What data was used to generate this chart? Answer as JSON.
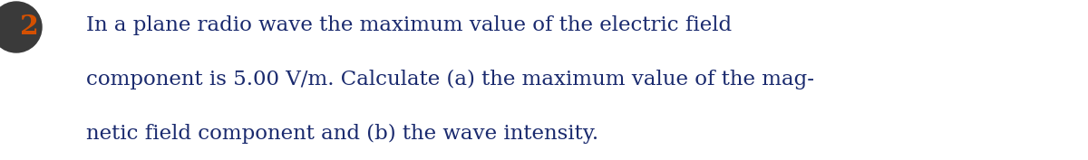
{
  "background_color": "#ffffff",
  "number_text": "2",
  "number_color": "#d45000",
  "icon_bg_color": "#3a3a3a",
  "line1": "In a plane radio wave the maximum value of the electric field",
  "line2": "component is 5.00 V/m. Calculate (a) the maximum value of the mag-",
  "line3": "netic field component and (b) the wave intensity.",
  "text_color": "#1a2a6e",
  "font_size": 16.5,
  "fig_width": 12.0,
  "fig_height": 1.77,
  "dpi": 100
}
